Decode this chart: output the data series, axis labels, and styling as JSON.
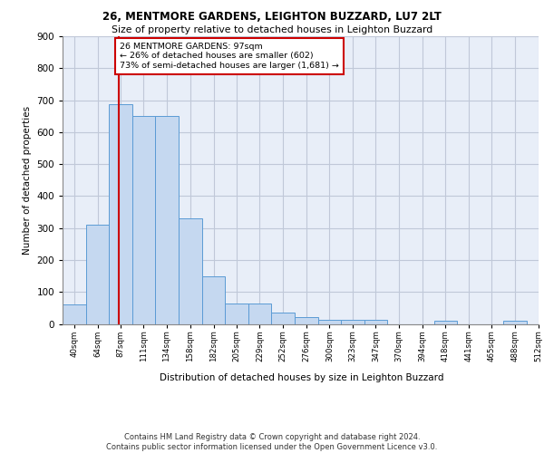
{
  "title1": "26, MENTMORE GARDENS, LEIGHTON BUZZARD, LU7 2LT",
  "title2": "Size of property relative to detached houses in Leighton Buzzard",
  "xlabel": "Distribution of detached houses by size in Leighton Buzzard",
  "ylabel": "Number of detached properties",
  "footnote1": "Contains HM Land Registry data © Crown copyright and database right 2024.",
  "footnote2": "Contains public sector information licensed under the Open Government Licence v3.0.",
  "bar_edges": [
    40,
    64,
    87,
    111,
    134,
    158,
    182,
    205,
    229,
    252,
    276,
    300,
    323,
    347,
    370,
    394,
    418,
    441,
    465,
    488,
    512
  ],
  "bar_heights": [
    62,
    310,
    688,
    651,
    651,
    330,
    149,
    65,
    65,
    35,
    20,
    12,
    12,
    12,
    0,
    0,
    9,
    0,
    0,
    9,
    0
  ],
  "bar_color": "#c5d8f0",
  "bar_edgecolor": "#5b9bd5",
  "property_size": 97,
  "property_line_color": "#cc0000",
  "annotation_text": "26 MENTMORE GARDENS: 97sqm\n← 26% of detached houses are smaller (602)\n73% of semi-detached houses are larger (1,681) →",
  "annotation_box_color": "#cc0000",
  "ylim": [
    0,
    900
  ],
  "yticks": [
    0,
    100,
    200,
    300,
    400,
    500,
    600,
    700,
    800,
    900
  ],
  "bg_color": "#e8eef8",
  "grid_color": "#c0c8d8"
}
